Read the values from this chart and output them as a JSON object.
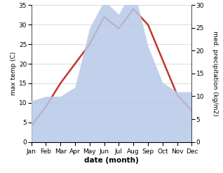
{
  "months": [
    "Jan",
    "Feb",
    "Mar",
    "Apr",
    "May",
    "Jun",
    "Jul",
    "Aug",
    "Sep",
    "Oct",
    "Nov",
    "Dec"
  ],
  "temperature": [
    4,
    9,
    15,
    20,
    25,
    32,
    29,
    34,
    30,
    21,
    12,
    8
  ],
  "precipitation": [
    9,
    10,
    10,
    12,
    25,
    31,
    28,
    34,
    21,
    13,
    11,
    11
  ],
  "temp_color": "#c0392b",
  "precip_color": "#b8c9e8",
  "temp_ylim": [
    0,
    35
  ],
  "precip_ylim": [
    0,
    30
  ],
  "temp_yticks": [
    0,
    5,
    10,
    15,
    20,
    25,
    30,
    35
  ],
  "precip_yticks": [
    0,
    5,
    10,
    15,
    20,
    25,
    30
  ],
  "xlabel": "date (month)",
  "ylabel_left": "max temp (C)",
  "ylabel_right": "med. precipitation (kg/m2)",
  "bg_color": "#ffffff",
  "grid_color": "#cccccc"
}
